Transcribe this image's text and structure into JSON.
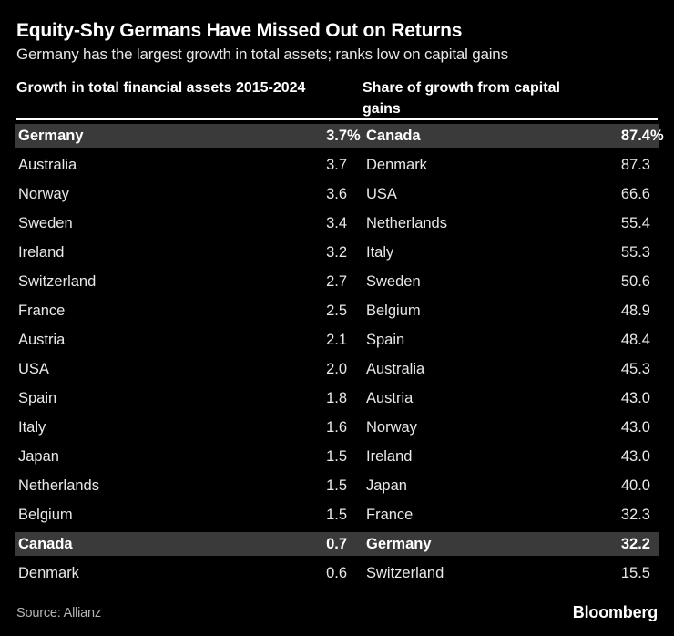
{
  "header": {
    "title": "Equity-Shy Germans Have Missed Out on Returns",
    "subtitle": "Germany has the largest growth in total assets; ranks low on capital gains"
  },
  "tables": {
    "left": {
      "heading": "Growth in total financial assets 2015-2024",
      "rows": [
        {
          "country": "Germany",
          "value": "3.7",
          "unit": "%",
          "highlight": true
        },
        {
          "country": "Australia",
          "value": "3.7",
          "unit": "",
          "highlight": false
        },
        {
          "country": "Norway",
          "value": "3.6",
          "unit": "",
          "highlight": false
        },
        {
          "country": "Sweden",
          "value": "3.4",
          "unit": "",
          "highlight": false
        },
        {
          "country": "Ireland",
          "value": "3.2",
          "unit": "",
          "highlight": false
        },
        {
          "country": "Switzerland",
          "value": "2.7",
          "unit": "",
          "highlight": false
        },
        {
          "country": "France",
          "value": "2.5",
          "unit": "",
          "highlight": false
        },
        {
          "country": "Austria",
          "value": "2.1",
          "unit": "",
          "highlight": false
        },
        {
          "country": "USA",
          "value": "2.0",
          "unit": "",
          "highlight": false
        },
        {
          "country": "Spain",
          "value": "1.8",
          "unit": "",
          "highlight": false
        },
        {
          "country": "Italy",
          "value": "1.6",
          "unit": "",
          "highlight": false
        },
        {
          "country": "Japan",
          "value": "1.5",
          "unit": "",
          "highlight": false
        },
        {
          "country": "Netherlands",
          "value": "1.5",
          "unit": "",
          "highlight": false
        },
        {
          "country": "Belgium",
          "value": "1.5",
          "unit": "",
          "highlight": false
        },
        {
          "country": "Canada",
          "value": "0.7",
          "unit": "",
          "highlight": true
        },
        {
          "country": "Denmark",
          "value": "0.6",
          "unit": "",
          "highlight": false
        }
      ]
    },
    "right": {
      "heading": "Share of growth from capital gains",
      "rows": [
        {
          "country": "Canada",
          "value": "87.4",
          "unit": "%",
          "highlight": true
        },
        {
          "country": "Denmark",
          "value": "87.3",
          "unit": "",
          "highlight": false
        },
        {
          "country": "USA",
          "value": "66.6",
          "unit": "",
          "highlight": false
        },
        {
          "country": "Netherlands",
          "value": "55.4",
          "unit": "",
          "highlight": false
        },
        {
          "country": "Italy",
          "value": "55.3",
          "unit": "",
          "highlight": false
        },
        {
          "country": "Sweden",
          "value": "50.6",
          "unit": "",
          "highlight": false
        },
        {
          "country": "Belgium",
          "value": "48.9",
          "unit": "",
          "highlight": false
        },
        {
          "country": "Spain",
          "value": "48.4",
          "unit": "",
          "highlight": false
        },
        {
          "country": "Australia",
          "value": "45.3",
          "unit": "",
          "highlight": false
        },
        {
          "country": "Austria",
          "value": "43.0",
          "unit": "",
          "highlight": false
        },
        {
          "country": "Norway",
          "value": "43.0",
          "unit": "",
          "highlight": false
        },
        {
          "country": "Ireland",
          "value": "43.0",
          "unit": "",
          "highlight": false
        },
        {
          "country": "Japan",
          "value": "40.0",
          "unit": "",
          "highlight": false
        },
        {
          "country": "France",
          "value": "32.3",
          "unit": "",
          "highlight": false
        },
        {
          "country": "Germany",
          "value": "32.2",
          "unit": "",
          "highlight": true
        },
        {
          "country": "Switzerland",
          "value": "15.5",
          "unit": "",
          "highlight": false
        }
      ]
    }
  },
  "footer": {
    "source": "Source: Allianz",
    "brand": "Bloomberg"
  },
  "colors": {
    "background": "#000000",
    "highlight_row": "#3a3a3a",
    "row_text": "#e8e8e6",
    "emphasis_text": "#ffffff",
    "source_text": "#b5b5b3",
    "divider": "#ffffff"
  },
  "chart_data": [
    {
      "type": "table",
      "title": "Growth in total financial assets 2015-2024",
      "unit": "%",
      "categories": [
        "Germany",
        "Australia",
        "Norway",
        "Sweden",
        "Ireland",
        "Switzerland",
        "France",
        "Austria",
        "USA",
        "Spain",
        "Italy",
        "Japan",
        "Netherlands",
        "Belgium",
        "Canada",
        "Denmark"
      ],
      "values": [
        3.7,
        3.7,
        3.6,
        3.4,
        3.2,
        2.7,
        2.5,
        2.1,
        2.0,
        1.8,
        1.6,
        1.5,
        1.5,
        1.5,
        0.7,
        0.6
      ],
      "highlighted_categories": [
        "Germany",
        "Canada"
      ],
      "legend_position": "none",
      "grid": false
    },
    {
      "type": "table",
      "title": "Share of growth from capital gains",
      "unit": "%",
      "categories": [
        "Canada",
        "Denmark",
        "USA",
        "Netherlands",
        "Italy",
        "Sweden",
        "Belgium",
        "Spain",
        "Australia",
        "Austria",
        "Norway",
        "Ireland",
        "Japan",
        "France",
        "Germany",
        "Switzerland"
      ],
      "values": [
        87.4,
        87.3,
        66.6,
        55.4,
        55.3,
        50.6,
        48.9,
        48.4,
        45.3,
        43.0,
        43.0,
        43.0,
        40.0,
        32.3,
        32.2,
        15.5
      ],
      "highlighted_categories": [
        "Canada",
        "Germany"
      ],
      "legend_position": "none",
      "grid": false
    }
  ]
}
